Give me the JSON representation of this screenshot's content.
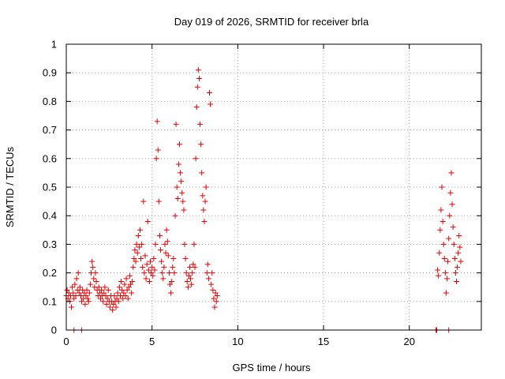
{
  "chart_data": {
    "type": "scatter",
    "title": "Day 019 of 2026, SRMTID for receiver brla",
    "xlabel": "GPS time / hours",
    "ylabel": "SRMTID / TECUs",
    "xlim": [
      0,
      24.2
    ],
    "ylim": [
      0,
      1
    ],
    "xticks": [
      0,
      5,
      10,
      15,
      20
    ],
    "xtick_labels": [
      "0",
      "5",
      "10",
      "15",
      "20"
    ],
    "yticks": [
      0,
      0.1,
      0.2,
      0.3,
      0.4,
      0.5,
      0.6,
      0.7,
      0.8,
      0.9,
      1
    ],
    "ytick_labels": [
      "0",
      "0.1",
      "0.2",
      "0.3",
      "0.4",
      "0.5",
      "0.6",
      "0.7",
      "0.8",
      "0.9",
      "1"
    ],
    "grid": true,
    "marker": "plus",
    "color": "#ee0000",
    "series": [
      {
        "name": "SRMTID",
        "points": [
          [
            0.0,
            0.12
          ],
          [
            0.05,
            0.14
          ],
          [
            0.1,
            0.11
          ],
          [
            0.15,
            0.13
          ],
          [
            0.2,
            0.1
          ],
          [
            0.25,
            0.12
          ],
          [
            0.3,
            0.08
          ],
          [
            0.35,
            0.15
          ],
          [
            0.4,
            0.13
          ],
          [
            0.45,
            0.11
          ],
          [
            0.5,
            0.16
          ],
          [
            0.55,
            0.12
          ],
          [
            0.6,
            0.18
          ],
          [
            0.65,
            0.14
          ],
          [
            0.7,
            0.2
          ],
          [
            0.75,
            0.13
          ],
          [
            0.8,
            0.15
          ],
          [
            0.85,
            0.12
          ],
          [
            0.9,
            0.1
          ],
          [
            0.95,
            0.14
          ],
          [
            1.0,
            0.11
          ],
          [
            1.05,
            0.13
          ],
          [
            1.1,
            0.09
          ],
          [
            1.15,
            0.12
          ],
          [
            1.2,
            0.14
          ],
          [
            1.25,
            0.11
          ],
          [
            1.3,
            0.1
          ],
          [
            1.35,
            0.13
          ],
          [
            1.4,
            0.16
          ],
          [
            1.45,
            0.2
          ],
          [
            1.5,
            0.24
          ],
          [
            1.55,
            0.22
          ],
          [
            1.6,
            0.18
          ],
          [
            1.65,
            0.15
          ],
          [
            1.7,
            0.2
          ],
          [
            1.75,
            0.17
          ],
          [
            1.8,
            0.14
          ],
          [
            1.85,
            0.12
          ],
          [
            1.9,
            0.15
          ],
          [
            1.95,
            0.13
          ],
          [
            2.0,
            0.11
          ],
          [
            2.05,
            0.14
          ],
          [
            2.1,
            0.12
          ],
          [
            2.15,
            0.1
          ],
          [
            2.2,
            0.13
          ],
          [
            2.25,
            0.15
          ],
          [
            2.3,
            0.12
          ],
          [
            2.35,
            0.09
          ],
          [
            2.4,
            0.11
          ],
          [
            2.45,
            0.14
          ],
          [
            2.5,
            0.1
          ],
          [
            2.55,
            0.08
          ],
          [
            2.6,
            0.12
          ],
          [
            2.65,
            0.1
          ],
          [
            2.7,
            0.07
          ],
          [
            2.75,
            0.09
          ],
          [
            2.8,
            0.12
          ],
          [
            2.85,
            0.1
          ],
          [
            2.9,
            0.08
          ],
          [
            2.95,
            0.11
          ],
          [
            3.0,
            0.13
          ],
          [
            3.05,
            0.1
          ],
          [
            3.1,
            0.15
          ],
          [
            3.15,
            0.12
          ],
          [
            3.2,
            0.17
          ],
          [
            3.25,
            0.14
          ],
          [
            3.3,
            0.11
          ],
          [
            3.35,
            0.13
          ],
          [
            3.4,
            0.16
          ],
          [
            3.45,
            0.12
          ],
          [
            3.5,
            0.18
          ],
          [
            3.55,
            0.14
          ],
          [
            3.6,
            0.11
          ],
          [
            3.65,
            0.15
          ],
          [
            3.7,
            0.19
          ],
          [
            3.75,
            0.16
          ],
          [
            3.8,
            0.13
          ],
          [
            3.85,
            0.17
          ],
          [
            3.9,
            0.22
          ],
          [
            3.95,
            0.25
          ],
          [
            4.0,
            0.28
          ],
          [
            4.05,
            0.24
          ],
          [
            4.1,
            0.3
          ],
          [
            4.15,
            0.27
          ],
          [
            4.2,
            0.33
          ],
          [
            4.25,
            0.29
          ],
          [
            4.3,
            0.35
          ],
          [
            4.35,
            0.25
          ],
          [
            4.4,
            0.3
          ],
          [
            4.45,
            0.22
          ],
          [
            4.5,
            0.45
          ],
          [
            4.55,
            0.2
          ],
          [
            4.6,
            0.26
          ],
          [
            4.65,
            0.18
          ],
          [
            4.7,
            0.23
          ],
          [
            4.75,
            0.38
          ],
          [
            4.8,
            0.21
          ],
          [
            4.85,
            0.17
          ],
          [
            4.9,
            0.24
          ],
          [
            4.95,
            0.2
          ],
          [
            5.0,
            0.22
          ],
          [
            5.05,
            0.19
          ],
          [
            5.1,
            0.25
          ],
          [
            5.15,
            0.21
          ],
          [
            5.2,
            0.3
          ],
          [
            5.25,
            0.6
          ],
          [
            5.3,
            0.73
          ],
          [
            5.35,
            0.63
          ],
          [
            5.4,
            0.45
          ],
          [
            5.45,
            0.33
          ],
          [
            5.5,
            0.28
          ],
          [
            5.55,
            0.24
          ],
          [
            5.6,
            0.2
          ],
          [
            5.65,
            0.18
          ],
          [
            5.7,
            0.22
          ],
          [
            5.75,
            0.3
          ],
          [
            5.8,
            0.27
          ],
          [
            5.85,
            0.35
          ],
          [
            5.9,
            0.31
          ],
          [
            5.95,
            0.26
          ],
          [
            6.0,
            0.2
          ],
          [
            6.05,
            0.16
          ],
          [
            6.1,
            0.13
          ],
          [
            6.15,
            0.17
          ],
          [
            6.2,
            0.22
          ],
          [
            6.25,
            0.25
          ],
          [
            6.3,
            0.2
          ],
          [
            6.35,
            0.4
          ],
          [
            6.4,
            0.72
          ],
          [
            6.45,
            0.5
          ],
          [
            6.5,
            0.46
          ],
          [
            6.55,
            0.58
          ],
          [
            6.6,
            0.65
          ],
          [
            6.65,
            0.55
          ],
          [
            6.7,
            0.52
          ],
          [
            6.75,
            0.48
          ],
          [
            6.8,
            0.45
          ],
          [
            6.85,
            0.42
          ],
          [
            6.9,
            0.3
          ],
          [
            6.95,
            0.25
          ],
          [
            7.0,
            0.2
          ],
          [
            7.05,
            0.17
          ],
          [
            7.1,
            0.15
          ],
          [
            7.15,
            0.19
          ],
          [
            7.2,
            0.22
          ],
          [
            7.25,
            0.18
          ],
          [
            7.3,
            0.16
          ],
          [
            7.35,
            0.2
          ],
          [
            7.4,
            0.23
          ],
          [
            7.45,
            0.3
          ],
          [
            7.5,
            0.22
          ],
          [
            7.55,
            0.6
          ],
          [
            7.6,
            0.78
          ],
          [
            7.65,
            0.85
          ],
          [
            7.7,
            0.91
          ],
          [
            7.75,
            0.88
          ],
          [
            7.8,
            0.72
          ],
          [
            7.85,
            0.65
          ],
          [
            7.9,
            0.55
          ],
          [
            7.95,
            0.47
          ],
          [
            8.0,
            0.42
          ],
          [
            8.05,
            0.38
          ],
          [
            8.1,
            0.45
          ],
          [
            8.15,
            0.5
          ],
          [
            8.2,
            0.2
          ],
          [
            8.25,
            0.23
          ],
          [
            8.3,
            0.18
          ],
          [
            8.35,
            0.83
          ],
          [
            8.4,
            0.79
          ],
          [
            8.45,
            0.16
          ],
          [
            8.5,
            0.2
          ],
          [
            8.55,
            0.14
          ],
          [
            8.6,
            0.11
          ],
          [
            8.65,
            0.08
          ],
          [
            8.7,
            0.13
          ],
          [
            8.75,
            0.1
          ],
          [
            8.8,
            0.12
          ],
          [
            0.45,
            0.0
          ],
          [
            0.9,
            0.0
          ],
          [
            21.55,
            0.0
          ],
          [
            21.6,
            0.0
          ],
          [
            21.65,
            0.21
          ],
          [
            21.7,
            0.19
          ],
          [
            21.75,
            0.27
          ],
          [
            21.8,
            0.35
          ],
          [
            21.85,
            0.42
          ],
          [
            21.9,
            0.5
          ],
          [
            21.95,
            0.38
          ],
          [
            22.0,
            0.3
          ],
          [
            22.05,
            0.25
          ],
          [
            22.1,
            0.2
          ],
          [
            22.15,
            0.13
          ],
          [
            22.2,
            0.18
          ],
          [
            22.25,
            0.24
          ],
          [
            22.3,
            0.32
          ],
          [
            22.35,
            0.4
          ],
          [
            22.4,
            0.48
          ],
          [
            22.45,
            0.55
          ],
          [
            22.5,
            0.44
          ],
          [
            22.55,
            0.36
          ],
          [
            22.6,
            0.3
          ],
          [
            22.65,
            0.25
          ],
          [
            22.7,
            0.2
          ],
          [
            22.75,
            0.17
          ],
          [
            22.8,
            0.22
          ],
          [
            22.85,
            0.27
          ],
          [
            22.9,
            0.33
          ],
          [
            22.95,
            0.29
          ],
          [
            23.0,
            0.24
          ],
          [
            22.3,
            0.0
          ]
        ]
      }
    ]
  }
}
